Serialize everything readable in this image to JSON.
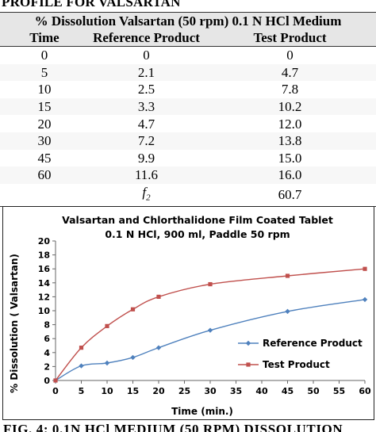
{
  "top_cut_text": "PROFILE FOR VALSARTAN",
  "table": {
    "title": "% Dissolution Valsartan (50 rpm) 0.1 N HCl Medium",
    "columns": [
      "Time",
      "Reference Product",
      "Test Product"
    ],
    "rows": [
      [
        "0",
        "0",
        "0"
      ],
      [
        "5",
        "2.1",
        "4.7"
      ],
      [
        "10",
        "2.5",
        "7.8"
      ],
      [
        "15",
        "3.3",
        "10.2"
      ],
      [
        "20",
        "4.7",
        "12.0"
      ],
      [
        "30",
        "7.2",
        "13.8"
      ],
      [
        "45",
        "9.9",
        "15.0"
      ],
      [
        "60",
        "11.6",
        "16.0"
      ]
    ],
    "f2_label": "f",
    "f2_sub": "2",
    "f2_value": "60.7"
  },
  "chart_data": {
    "type": "line",
    "title": "Valsartan and Chlorthalidone Film Coated Tablet",
    "subtitle": "0.1 N HCl, 900 ml, Paddle 50 rpm",
    "xlabel": "Time (min.)",
    "ylabel": "% Dissolution ( Valsartan)",
    "xlim": [
      0,
      60
    ],
    "ylim": [
      0,
      20
    ],
    "xticks": [
      0,
      5,
      10,
      15,
      20,
      25,
      30,
      35,
      40,
      45,
      50,
      55,
      60
    ],
    "yticks": [
      0,
      2,
      4,
      6,
      8,
      10,
      12,
      14,
      16,
      18,
      20
    ],
    "grid": false,
    "legend": "bottom-right inside",
    "series": [
      {
        "name": "Reference Product",
        "color": "#4f81bd",
        "marker": "diamond",
        "x": [
          0,
          5,
          10,
          15,
          20,
          30,
          45,
          60
        ],
        "y": [
          0,
          2.1,
          2.5,
          3.3,
          4.7,
          7.2,
          9.9,
          11.6
        ]
      },
      {
        "name": "Test Product",
        "color": "#c0504d",
        "marker": "square",
        "x": [
          0,
          5,
          10,
          15,
          20,
          30,
          45,
          60
        ],
        "y": [
          0,
          4.7,
          7.8,
          10.2,
          12.0,
          13.8,
          15.0,
          16.0
        ]
      }
    ]
  },
  "bottom_cut_text": "FIG. 4: 0.1N HCl MEDIUM (50 RPM) DISSOLUTION"
}
